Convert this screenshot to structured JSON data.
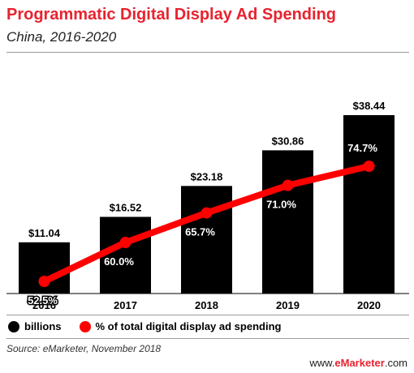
{
  "header": {
    "title": "Programmatic Digital Display Ad Spending",
    "subtitle": "China, 2016-2020"
  },
  "chart_data": {
    "type": "bar",
    "categories": [
      "2016",
      "2017",
      "2018",
      "2019",
      "2020"
    ],
    "series": [
      {
        "name": "billions",
        "kind": "bar",
        "values": [
          11.04,
          16.52,
          23.18,
          30.86,
          38.44
        ],
        "labels": [
          "$11.04",
          "$16.52",
          "$23.18",
          "$30.86",
          "$38.44"
        ],
        "color": "#000000"
      },
      {
        "name": "% of total digital display ad spending",
        "kind": "line",
        "values": [
          52.5,
          60.0,
          65.7,
          71.0,
          74.7
        ],
        "labels": [
          "52.5%",
          "60.0%",
          "65.7%",
          "71.0%",
          "74.7%"
        ],
        "color": "#ff0000"
      }
    ]
  },
  "legend": {
    "bars_label": "billions",
    "line_label": "% of total digital display ad spending"
  },
  "footer": {
    "source": "Source: eMarketer, November 2018",
    "brand_prefix": "www.",
    "brand_name": "eMarketer",
    "brand_suffix": ".com"
  },
  "colors": {
    "accent": "#e8232f",
    "bar": "#000000",
    "line": "#ff0000"
  }
}
